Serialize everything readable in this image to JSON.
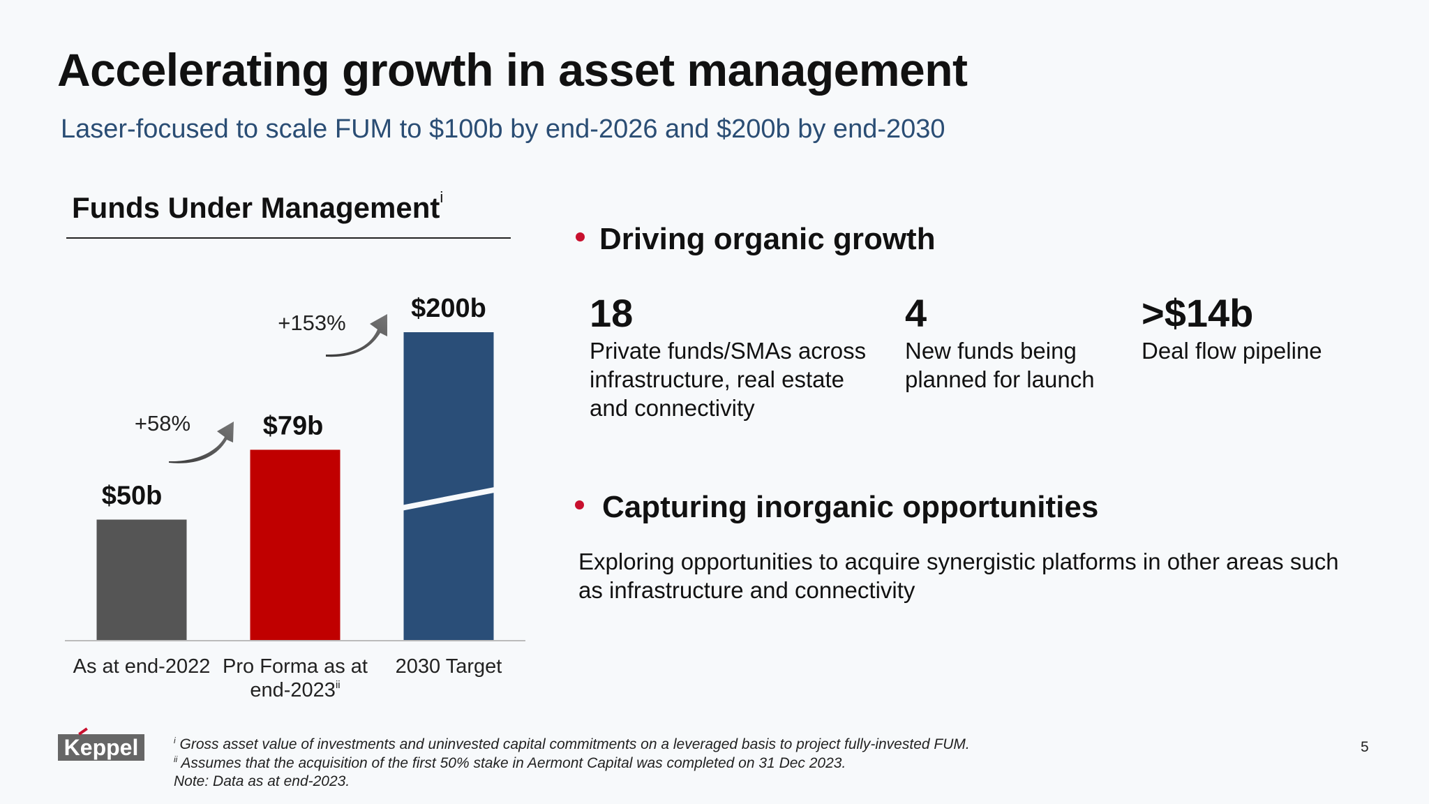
{
  "title": "Accelerating growth in asset management",
  "subtitle": "Laser-focused to scale FUM to $100b by end-2026 and $200b by end-2030",
  "chart_heading": "Funds Under Management",
  "chart_heading_sup": "i",
  "chart_data": {
    "type": "bar",
    "categories": [
      "As at end-2022",
      "Pro Forma as at end-2023",
      "2030 Target"
    ],
    "category_superscripts": [
      "",
      "ii",
      ""
    ],
    "values": [
      50,
      79,
      200
    ],
    "value_labels": [
      "$50b",
      "$79b",
      "$200b"
    ],
    "growth_labels": [
      "+58%",
      "+153%"
    ],
    "bar_colors": [
      "#555555",
      "#c00000",
      "#2a4e78"
    ],
    "broken_axis_on_last_bar": true,
    "unit": "$b",
    "title": "",
    "xlabel": "",
    "ylabel": "",
    "grid": false
  },
  "organic": {
    "title": "Driving organic growth",
    "stats": [
      {
        "value": "18",
        "desc": "Private funds/SMAs across infrastructure, real estate and connectivity"
      },
      {
        "value": "4",
        "desc": "New funds being planned for launch"
      },
      {
        "value": ">$14b",
        "desc": "Deal flow pipeline"
      }
    ]
  },
  "inorganic": {
    "title": "Capturing inorganic opportunities",
    "text": "Exploring opportunities to acquire synergistic platforms in other areas such as infrastructure and connectivity"
  },
  "colors": {
    "accent_red": "#c8102e",
    "subtitle_blue": "#2a4d74"
  },
  "logo": {
    "text": "Keppel"
  },
  "footnotes": [
    {
      "sup": "i",
      "text": "Gross asset value of investments and uninvested capital commitments on a leveraged basis to project fully-invested FUM."
    },
    {
      "sup": "ii",
      "text": "Assumes that the acquisition of the first 50% stake in Aermont Capital was completed on 31 Dec 2023."
    },
    {
      "sup": "",
      "text": "Note: Data as at end-2023."
    }
  ],
  "page_number": "5"
}
